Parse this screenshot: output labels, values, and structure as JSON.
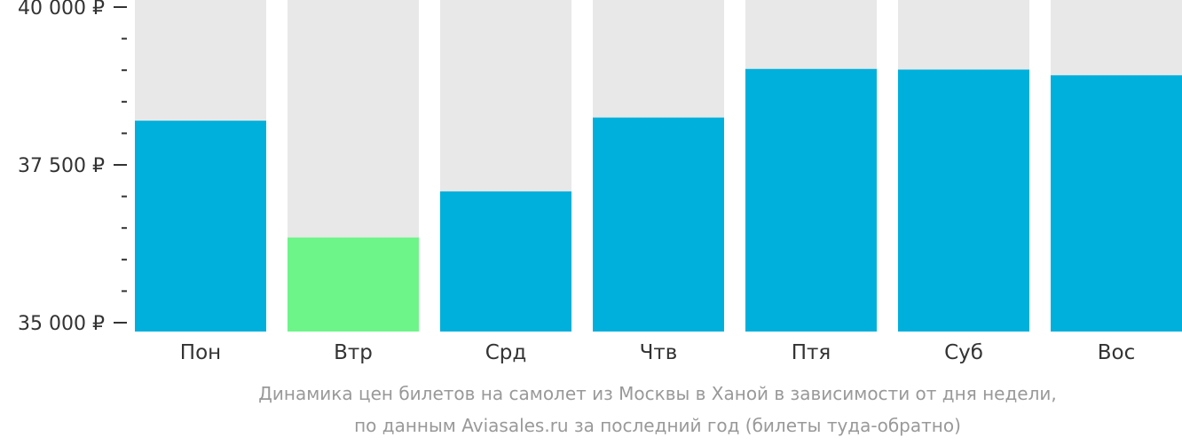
{
  "chart_data": {
    "type": "bar",
    "categories": [
      "Пон",
      "Втр",
      "Срд",
      "Чтв",
      "Птя",
      "Суб",
      "Вос"
    ],
    "values": [
      38200,
      36350,
      37080,
      38250,
      39020,
      39010,
      38920
    ],
    "ylim": [
      35000,
      40000
    ],
    "yticks": [
      35000,
      37500,
      40000
    ],
    "ytick_labels": [
      "35 000 ₽",
      "37 500 ₽",
      "40 000 ₽"
    ],
    "minor_tick_step": 500,
    "grid": false,
    "highlight_index": 1,
    "colors": {
      "bar": "#00b0dc",
      "highlight": "#6df58a",
      "background_column": "#e8e8e8",
      "axis": "#333333"
    }
  },
  "caption": {
    "line1": "Динамика цен билетов на самолет из Москвы в Ханой в зависимости от дня недели,",
    "line2": "по данным Aviasales.ru за последний год (билеты туда-обратно)"
  }
}
